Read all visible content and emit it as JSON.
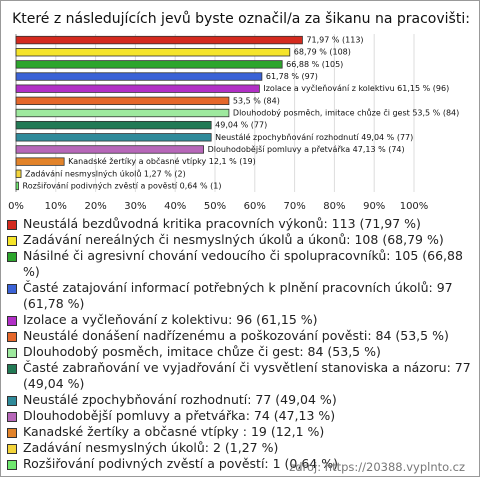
{
  "chart_data": {
    "type": "bar",
    "orientation": "horizontal",
    "title": "Které z následujících jevů byste označil/a za šikanu na pracovišti:",
    "categories": [
      "Neustálá bezdůvodná kritika pracovních výkonů: 113 (71,97 %)",
      "Zadávání nereálných či nesmyslných úkolů a úkonů: 108 (68,79 %)",
      "Násilné či agresivní chování vedoucího či spolupracovníků: 105 (66,88 %)",
      "Časté zatajování informací potřebných k plnění pracovních úkolů: 97 (61,78 %)",
      "Izolace a vyčleňování z kolektivu: 96 (61,15 %)",
      "Neustálé donášení nadřízenému a poškozování pověsti: 84 (53,5 %)",
      "Dlouhodobý posměch, imitace chůze či gest: 84 (53,5 %)",
      "Časté zabraňování ve vyjadřování či vysvětlení stanoviska a názoru: 77 (49,04 %)",
      "Neustálé zpochybňování rozhodnutí: 77 (49,04 %)",
      "Dlouhodobější pomluvy a přetvářka: 74 (47,13 %)",
      "Kanadské žertíky a občasné vtípky : 19 (12,1 %)",
      "Zadávání nesmyslných úkolů: 2 (1,27 %)",
      "Rozšiřování podivných zvěstí a pověstí: 1 (0,64 %)"
    ],
    "values": [
      71.97,
      68.79,
      66.88,
      61.78,
      61.15,
      53.5,
      53.5,
      49.04,
      49.04,
      47.13,
      12.1,
      1.27,
      0.64
    ],
    "value_labels": [
      "71,97 % (113)",
      "68,79 % (108)",
      "66,88 % (105)",
      "61,78 % (97)",
      "Izolace a vyčleňování z kolektivu 61,15 % (96)",
      "53,5 % (84)",
      "Dlouhodobý posměch, imitace chůze či gest 53,5 % (84)",
      "49,04 % (77)",
      "Neustálé zpochybňování rozhodnutí 49,04 % (77)",
      "Dlouhodobější pomluvy a přetvářka 47,13 % (74)",
      "Kanadské žertíky a občasné vtípky   12,1 % (19)",
      "Zadávání nesmyslných úkolů 1,27 % (2)",
      "Rozšiřování podivných zvěstí a pověstí 0,64 % (1)"
    ],
    "colors": [
      "#d42a1e",
      "#f5e42a",
      "#2da52d",
      "#3b62d6",
      "#b12fc6",
      "#e5672a",
      "#9ee99e",
      "#227a55",
      "#2f8a9a",
      "#b767b9",
      "#e2832a",
      "#f3d43a",
      "#6fe86f"
    ],
    "xlim": [
      0,
      100
    ],
    "xticks": [
      {
        "value": 0,
        "label": "0%"
      },
      {
        "value": 10,
        "label": "10%"
      },
      {
        "value": 20,
        "label": "20%"
      },
      {
        "value": 30,
        "label": "30%"
      },
      {
        "value": 40,
        "label": "40%"
      },
      {
        "value": 50,
        "label": "50%"
      },
      {
        "value": 60,
        "label": "60%"
      },
      {
        "value": 70,
        "label": "70%"
      },
      {
        "value": 80,
        "label": "80%"
      },
      {
        "value": 90,
        "label": "90%"
      },
      {
        "value": 100,
        "label": "100%"
      }
    ],
    "source": "zdroj: https://20388.vyplnto.cz"
  }
}
